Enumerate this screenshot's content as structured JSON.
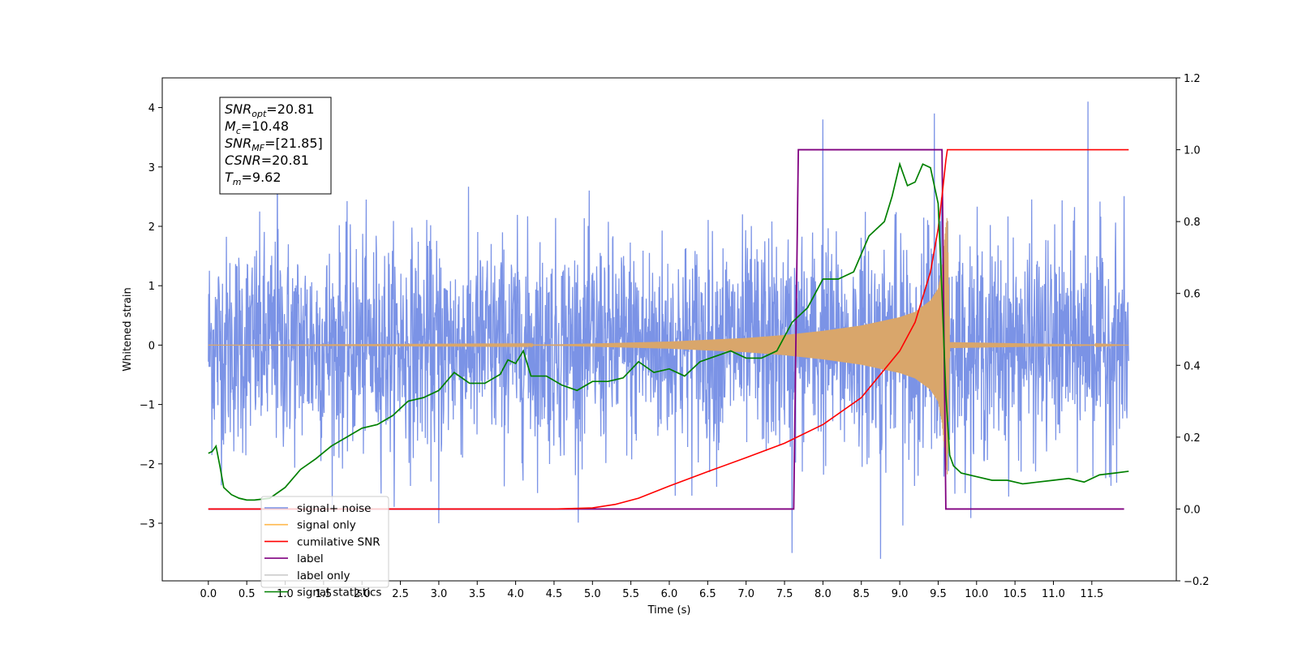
{
  "chart_data": {
    "type": "line",
    "xlabel": "Time (s)",
    "ylabel": "Whitened strain",
    "xlim": [
      -0.6,
      12.6
    ],
    "ylim": [
      -3.97,
      4.5
    ],
    "y2lim": [
      -0.2,
      1.2
    ],
    "x_ticks": [
      "0.0",
      "0.5",
      "1.0",
      "1.5",
      "2.0",
      "2.5",
      "3.0",
      "3.5",
      "4.0",
      "4.5",
      "5.0",
      "5.5",
      "6.0",
      "6.5",
      "7.0",
      "7.5",
      "8.0",
      "8.5",
      "9.0",
      "9.5",
      "10.0",
      "10.5",
      "11.0",
      "11.5"
    ],
    "y_ticks": [
      "−3",
      "−2",
      "−1",
      "0",
      "1",
      "2",
      "3",
      "4"
    ],
    "y2_ticks": [
      "−0.2",
      "0.0",
      "0.2",
      "0.4",
      "0.6",
      "0.8",
      "1.0",
      "1.2"
    ],
    "annotation_lines": [
      {
        "name": "SNR",
        "sub": "opt",
        "value": "=20.81"
      },
      {
        "name": "M",
        "sub": "c",
        "value": "=10.48"
      },
      {
        "name": "SNR",
        "sub": "MF",
        "value": "=[21.85]"
      },
      {
        "name": "CSNR",
        "sub": "",
        "value": "=20.81"
      },
      {
        "name": "T",
        "sub": "m",
        "value": "=9.62"
      }
    ],
    "legend": {
      "placement": "lower-left",
      "items": [
        {
          "label": "signal+ noise",
          "color": "#7b93e6"
        },
        {
          "label": "signal only",
          "color": "#ffb84d"
        },
        {
          "label": "cumilative SNR",
          "color": "#ff0000"
        },
        {
          "label": "label",
          "color": "#800080"
        },
        {
          "label": "label only",
          "color": "#cccccc"
        },
        {
          "label": "signal statistics",
          "color": "#008000"
        }
      ]
    },
    "series": [
      {
        "name": "signal+ noise",
        "axis": "left",
        "color": "#7b93e6",
        "description_values": {
          "x_start": 0.0,
          "x_end": 11.98,
          "noise_sigma": 0.9,
          "peaks": [
            [
              0.9,
              3.65
            ],
            [
              8.0,
              3.8
            ],
            [
              9.45,
              3.9
            ],
            [
              11.45,
              4.1
            ],
            [
              7.6,
              -3.5
            ],
            [
              8.75,
              -3.6
            ],
            [
              3.0,
              -3.0
            ]
          ]
        }
      },
      {
        "name": "signal only",
        "axis": "left",
        "color": "#d9a66b",
        "envelope": {
          "x": [
            0.0,
            4.5,
            6.0,
            7.0,
            7.5,
            8.0,
            8.5,
            9.0,
            9.2,
            9.4,
            9.5,
            9.55,
            9.6,
            9.62,
            9.65,
            11.98
          ],
          "amp": [
            0.0,
            0.01,
            0.06,
            0.12,
            0.17,
            0.24,
            0.33,
            0.47,
            0.56,
            0.75,
            0.95,
            1.3,
            2.0,
            2.2,
            0.05,
            0.0
          ]
        }
      },
      {
        "name": "cumilative SNR",
        "axis": "right",
        "color": "#ff0000",
        "x": [
          0.0,
          4.5,
          5.0,
          5.3,
          5.6,
          6.0,
          6.5,
          7.0,
          7.5,
          8.0,
          8.5,
          9.0,
          9.2,
          9.4,
          9.5,
          9.55,
          9.6,
          9.62,
          9.65,
          11.98
        ],
        "y": [
          0.0,
          0.0,
          0.003,
          0.013,
          0.03,
          0.064,
          0.104,
          0.143,
          0.183,
          0.235,
          0.31,
          0.44,
          0.52,
          0.66,
          0.78,
          0.87,
          0.97,
          1.0,
          1.0,
          1.0
        ]
      },
      {
        "name": "label",
        "axis": "right",
        "color": "#800080",
        "x": [
          0.0,
          7.62,
          7.68,
          9.55,
          9.6,
          11.92
        ],
        "y": [
          0.0,
          0.0,
          1.0,
          1.0,
          0.0,
          0.0
        ]
      },
      {
        "name": "signal statistics",
        "axis": "right",
        "color": "#008000",
        "x": [
          0.0,
          0.05,
          0.1,
          0.15,
          0.2,
          0.3,
          0.4,
          0.5,
          0.6,
          0.8,
          0.9,
          1.0,
          1.2,
          1.4,
          1.6,
          1.8,
          2.0,
          2.2,
          2.4,
          2.5,
          2.6,
          2.8,
          3.0,
          3.2,
          3.4,
          3.6,
          3.8,
          3.9,
          4.0,
          4.1,
          4.2,
          4.4,
          4.6,
          4.8,
          5.0,
          5.2,
          5.4,
          5.6,
          5.8,
          6.0,
          6.2,
          6.4,
          6.6,
          6.8,
          7.0,
          7.2,
          7.4,
          7.6,
          7.8,
          8.0,
          8.2,
          8.4,
          8.6,
          8.8,
          8.9,
          9.0,
          9.1,
          9.2,
          9.3,
          9.4,
          9.5,
          9.55,
          9.6,
          9.65,
          9.7,
          9.8,
          10.0,
          10.2,
          10.4,
          10.6,
          10.8,
          11.0,
          11.2,
          11.4,
          11.6,
          11.8,
          11.98
        ],
        "y": [
          0.155,
          0.16,
          0.175,
          0.12,
          0.06,
          0.04,
          0.03,
          0.025,
          0.025,
          0.03,
          0.045,
          0.06,
          0.11,
          0.14,
          0.175,
          0.2,
          0.225,
          0.235,
          0.26,
          0.28,
          0.3,
          0.31,
          0.33,
          0.38,
          0.35,
          0.35,
          0.375,
          0.415,
          0.405,
          0.44,
          0.37,
          0.37,
          0.345,
          0.33,
          0.355,
          0.355,
          0.365,
          0.41,
          0.38,
          0.39,
          0.37,
          0.41,
          0.425,
          0.44,
          0.42,
          0.42,
          0.44,
          0.52,
          0.56,
          0.64,
          0.64,
          0.66,
          0.76,
          0.8,
          0.87,
          0.96,
          0.9,
          0.91,
          0.96,
          0.95,
          0.85,
          0.6,
          0.32,
          0.15,
          0.12,
          0.1,
          0.09,
          0.08,
          0.08,
          0.07,
          0.075,
          0.08,
          0.085,
          0.075,
          0.095,
          0.1,
          0.105
        ]
      }
    ]
  }
}
